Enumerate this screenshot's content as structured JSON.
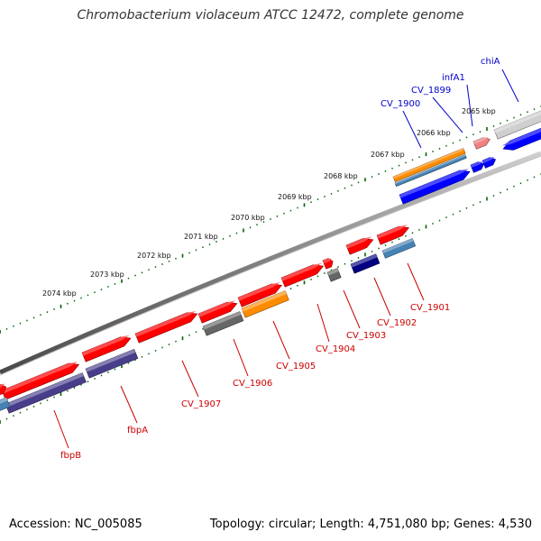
{
  "title": "Chromobacterium violaceum ATCC 12472, complete genome",
  "footer": {
    "accession": "Accession: NC_005085",
    "summary": "Topology: circular; Length: 4,751,080 bp; Genes: 4,530"
  },
  "colors": {
    "forward_cds": "#ff0000",
    "reverse_cds": "#0000ff",
    "orange_feature": "#ff8c00",
    "gray_feature": "#666666",
    "navy_feature": "#000080",
    "steelblue_feature": "#4682b4",
    "purple_feature": "#483d8b",
    "pink_feature": "#f08080",
    "backbone": "#808080",
    "ticks": "#006400",
    "label_forward": "#cc0000",
    "label_reverse": "#0000cc"
  },
  "kbp_ticks": [
    "2065 kbp",
    "2066 kbp",
    "2067 kbp",
    "2068 kbp",
    "2069 kbp",
    "2070 kbp",
    "2071 kbp",
    "2072 kbp",
    "2073 kbp",
    "2074 kbp"
  ],
  "top_labels": [
    "chiA",
    "infA1",
    "CV_1899",
    "CV_1900"
  ],
  "bottom_labels": [
    "CV_1901",
    "CV_1902",
    "CV_1903",
    "CV_1904",
    "CV_1905",
    "CV_1906",
    "CV_1907",
    "fbpA",
    "fbpB"
  ]
}
